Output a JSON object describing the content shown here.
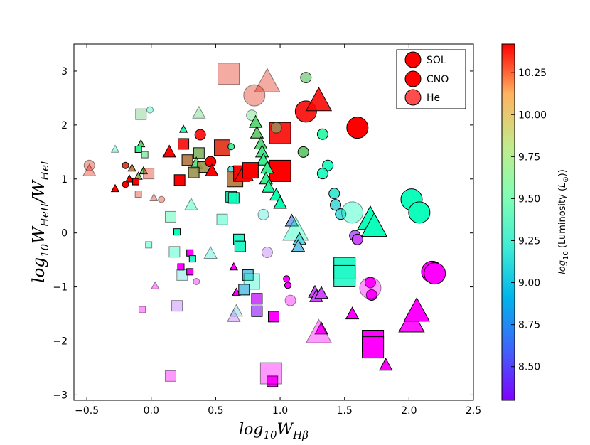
{
  "chart_data": {
    "type": "scatter",
    "xlabel": "log10WHβ",
    "ylabel": "log10WHeII/WHeI",
    "xlim": [
      -0.6,
      2.5
    ],
    "ylim": [
      -3.1,
      3.5
    ],
    "xticks": [
      -0.5,
      0.0,
      0.5,
      1.0,
      1.5,
      2.0,
      2.5
    ],
    "xtick_labels": [
      "−0.5",
      "0.0",
      "0.5",
      "1.0",
      "1.5",
      "2.0",
      "2.5"
    ],
    "yticks": [
      -3,
      -2,
      -1,
      0,
      1,
      2,
      3
    ],
    "ytick_labels": [
      "−3",
      "−2",
      "−1",
      "0",
      "1",
      "2",
      "3"
    ],
    "colorbar": {
      "label": "log10 (Luminosity (L☉))",
      "label_prefix": "log",
      "label_sub": "10",
      "label_mid": " (Luminosity (",
      "label_L": "L",
      "label_sun": "⊙",
      "label_end": "))",
      "vmin": 8.3,
      "vmax": 10.42,
      "ticks": [
        8.5,
        8.75,
        9.0,
        9.25,
        9.5,
        9.75,
        10.0,
        10.25
      ],
      "tick_labels": [
        "8.50",
        "8.75",
        "9.00",
        "9.25",
        "9.50",
        "9.75",
        "10.00",
        "10.25"
      ]
    },
    "legend": {
      "position": "upper-right",
      "entries": [
        {
          "label": "SOL",
          "marker": "circle",
          "alpha": 1.0
        },
        {
          "label": "CNO",
          "marker": "circle",
          "alpha": 1.0
        },
        {
          "label": "He",
          "marker": "circle",
          "alpha": 0.7
        }
      ]
    },
    "points": [
      {
        "x": 0.6,
        "y": 2.95,
        "m": "s",
        "s": 3,
        "c": 10.3,
        "a": 0.4
      },
      {
        "x": 0.9,
        "y": 2.8,
        "m": "t",
        "s": 3,
        "c": 10.3,
        "a": 0.4
      },
      {
        "x": 0.8,
        "y": 2.55,
        "m": "o",
        "s": 3,
        "c": 10.3,
        "a": 0.4
      },
      {
        "x": 1.2,
        "y": 2.88,
        "m": "o",
        "s": 1,
        "c": 9.8,
        "a": 0.7
      },
      {
        "x": 1.2,
        "y": 2.25,
        "m": "o",
        "s": 3,
        "c": 10.4,
        "a": 0.9
      },
      {
        "x": 1.3,
        "y": 2.45,
        "m": "t",
        "s": 3,
        "c": 10.4,
        "a": 0.9
      },
      {
        "x": 1.6,
        "y": 1.95,
        "m": "o",
        "s": 3,
        "c": 10.42,
        "a": 1.0
      },
      {
        "x": 1.0,
        "y": 1.85,
        "m": "s",
        "s": 3,
        "c": 10.4,
        "a": 0.9
      },
      {
        "x": 0.97,
        "y": 1.95,
        "m": "o",
        "s": 1,
        "c": 9.75,
        "a": 0.5
      },
      {
        "x": 1.33,
        "y": 1.83,
        "m": "o",
        "s": 1,
        "c": 9.5,
        "a": 0.9
      },
      {
        "x": 1.18,
        "y": 1.5,
        "m": "o",
        "s": 1,
        "c": 9.8,
        "a": 1.0
      },
      {
        "x": 1.37,
        "y": 1.25,
        "m": "o",
        "s": 1,
        "c": 9.3,
        "a": 0.9
      },
      {
        "x": 1.33,
        "y": 1.1,
        "m": "o",
        "s": 1,
        "c": 9.3,
        "a": 0.9
      },
      {
        "x": 1.0,
        "y": 1.15,
        "m": "s",
        "s": 3,
        "c": 10.42,
        "a": 1.0
      },
      {
        "x": -0.08,
        "y": 2.2,
        "m": "s",
        "s": 1,
        "c": 9.8,
        "a": 0.4
      },
      {
        "x": -0.01,
        "y": 2.28,
        "m": "o",
        "s": 0,
        "c": 9.3,
        "a": 0.4
      },
      {
        "x": 0.37,
        "y": 2.22,
        "m": "t",
        "s": 1,
        "c": 9.75,
        "a": 0.4
      },
      {
        "x": 0.78,
        "y": 2.18,
        "m": "o",
        "s": 1,
        "c": 9.75,
        "a": 0.4
      },
      {
        "x": 0.81,
        "y": 2.05,
        "m": "t",
        "s": 1,
        "c": 9.75,
        "a": 1.0
      },
      {
        "x": 0.82,
        "y": 1.85,
        "m": "t",
        "s": 1,
        "c": 9.8,
        "a": 1.0
      },
      {
        "x": 0.85,
        "y": 1.65,
        "m": "t",
        "s": 1,
        "c": 9.75,
        "a": 1.0
      },
      {
        "x": 0.86,
        "y": 1.5,
        "m": "t",
        "s": 1,
        "c": 9.65,
        "a": 1.0
      },
      {
        "x": 0.87,
        "y": 1.35,
        "m": "t",
        "s": 1,
        "c": 9.6,
        "a": 1.0
      },
      {
        "x": 0.9,
        "y": 1.2,
        "m": "t",
        "s": 1,
        "c": 9.6,
        "a": 1.0
      },
      {
        "x": 0.89,
        "y": 1.0,
        "m": "t",
        "s": 1,
        "c": 9.6,
        "a": 1.0
      },
      {
        "x": 0.91,
        "y": 0.85,
        "m": "t",
        "s": 1,
        "c": 9.5,
        "a": 1.0
      },
      {
        "x": 0.97,
        "y": 0.7,
        "m": "t",
        "s": 1,
        "c": 9.4,
        "a": 1.0
      },
      {
        "x": 1.0,
        "y": 0.55,
        "m": "t",
        "s": 1,
        "c": 9.35,
        "a": 1.0
      },
      {
        "x": 0.87,
        "y": 0.34,
        "m": "o",
        "s": 1,
        "c": 9.1,
        "a": 0.4
      },
      {
        "x": 0.38,
        "y": 1.82,
        "m": "o",
        "s": 1,
        "c": 10.4,
        "a": 0.9
      },
      {
        "x": 0.25,
        "y": 1.65,
        "m": "s",
        "s": 1,
        "c": 10.4,
        "a": 0.9
      },
      {
        "x": 0.55,
        "y": 1.58,
        "m": "s",
        "s": 2,
        "c": 10.3,
        "a": 0.9
      },
      {
        "x": 0.37,
        "y": 1.48,
        "m": "s",
        "s": 1,
        "c": 9.9,
        "a": 0.9
      },
      {
        "x": 0.25,
        "y": 1.92,
        "m": "t",
        "s": 0,
        "c": 9.4,
        "a": 1.0
      },
      {
        "x": 0.28,
        "y": 1.35,
        "m": "s",
        "s": 1,
        "c": 10.1,
        "a": 0.9
      },
      {
        "x": 0.35,
        "y": 1.28,
        "m": "t",
        "s": 1,
        "c": 9.7,
        "a": 0.9
      },
      {
        "x": 0.4,
        "y": 1.22,
        "m": "s",
        "s": 1,
        "c": 10.0,
        "a": 0.9
      },
      {
        "x": 0.33,
        "y": 1.12,
        "m": "s",
        "s": 1,
        "c": 10.0,
        "a": 0.9
      },
      {
        "x": 0.14,
        "y": 1.5,
        "m": "t",
        "s": 1,
        "c": 10.42,
        "a": 1.0
      },
      {
        "x": 0.46,
        "y": 1.32,
        "m": "o",
        "s": 1,
        "c": 10.42,
        "a": 1.0
      },
      {
        "x": 0.47,
        "y": 1.15,
        "m": "t",
        "s": 1,
        "c": 10.42,
        "a": 1.0
      },
      {
        "x": 0.22,
        "y": 0.98,
        "m": "s",
        "s": 1,
        "c": 10.42,
        "a": 1.0
      },
      {
        "x": 0.62,
        "y": 1.6,
        "m": "o",
        "s": 0,
        "c": 9.6,
        "a": 0.9
      },
      {
        "x": 0.62,
        "y": 1.18,
        "m": "o",
        "s": 0,
        "c": 9.0,
        "a": 0.9
      },
      {
        "x": 0.65,
        "y": 1.0,
        "m": "s",
        "s": 2,
        "c": 10.1,
        "a": 0.9
      },
      {
        "x": 0.7,
        "y": 1.1,
        "m": "s",
        "s": 2,
        "c": 10.4,
        "a": 1.0
      },
      {
        "x": 0.72,
        "y": 1.1,
        "m": "t",
        "s": 2,
        "c": 10.4,
        "a": 1.0
      },
      {
        "x": 0.77,
        "y": 1.16,
        "m": "s",
        "s": 2,
        "c": 10.42,
        "a": 1.0
      },
      {
        "x": 0.62,
        "y": 0.67,
        "m": "s",
        "s": 1,
        "c": 9.4,
        "a": 0.9
      },
      {
        "x": 0.64,
        "y": 0.65,
        "m": "s",
        "s": 1,
        "c": 9.3,
        "a": 0.9
      },
      {
        "x": 0.55,
        "y": 0.25,
        "m": "s",
        "s": 1,
        "c": 9.35,
        "a": 0.4
      },
      {
        "x": -0.08,
        "y": 1.65,
        "m": "t",
        "s": 0,
        "c": 9.8,
        "a": 1.0
      },
      {
        "x": -0.1,
        "y": 1.55,
        "m": "s",
        "s": 0,
        "c": 9.6,
        "a": 1.0
      },
      {
        "x": -0.05,
        "y": 1.45,
        "m": "s",
        "s": 0,
        "c": 9.7,
        "a": 0.6
      },
      {
        "x": -0.2,
        "y": 1.25,
        "m": "o",
        "s": 0,
        "c": 10.3,
        "a": 0.9
      },
      {
        "x": -0.15,
        "y": 1.2,
        "m": "t",
        "s": 0,
        "c": 10.1,
        "a": 0.9
      },
      {
        "x": -0.1,
        "y": 1.05,
        "m": "t",
        "s": 0,
        "c": 9.9,
        "a": 0.9
      },
      {
        "x": -0.06,
        "y": 1.15,
        "m": "t",
        "s": 0,
        "c": 9.8,
        "a": 1.0
      },
      {
        "x": -0.02,
        "y": 1.1,
        "m": "s",
        "s": 1,
        "c": 10.3,
        "a": 0.4
      },
      {
        "x": -0.17,
        "y": 1.0,
        "m": "t",
        "s": 0,
        "c": 10.42,
        "a": 1.0
      },
      {
        "x": -0.12,
        "y": 0.95,
        "m": "s",
        "s": 0,
        "c": 10.42,
        "a": 1.0
      },
      {
        "x": -0.2,
        "y": 0.9,
        "m": "o",
        "s": 0,
        "c": 10.42,
        "a": 1.0
      },
      {
        "x": -0.28,
        "y": 0.82,
        "m": "t",
        "s": 0,
        "c": 10.42,
        "a": 1.0
      },
      {
        "x": -0.28,
        "y": 1.55,
        "m": "t",
        "s": 0,
        "c": 9.2,
        "a": 0.4
      },
      {
        "x": -0.48,
        "y": 1.25,
        "m": "o",
        "s": 1,
        "c": 10.3,
        "a": 0.4
      },
      {
        "x": -0.48,
        "y": 1.15,
        "m": "t",
        "s": 1,
        "c": 10.3,
        "a": 0.4
      },
      {
        "x": -0.1,
        "y": 0.72,
        "m": "s",
        "s": 0,
        "c": 10.3,
        "a": 0.4
      },
      {
        "x": 0.02,
        "y": 0.65,
        "m": "t",
        "s": 0,
        "c": 10.3,
        "a": 0.4
      },
      {
        "x": 0.08,
        "y": 0.62,
        "m": "o",
        "s": 0,
        "c": 10.3,
        "a": 0.4
      },
      {
        "x": 0.15,
        "y": 0.3,
        "m": "s",
        "s": 1,
        "c": 9.5,
        "a": 0.4
      },
      {
        "x": 0.31,
        "y": 0.52,
        "m": "t",
        "s": 1,
        "c": 9.3,
        "a": 0.4
      },
      {
        "x": -0.02,
        "y": -0.22,
        "m": "s",
        "s": 0,
        "c": 9.3,
        "a": 0.4
      },
      {
        "x": 0.2,
        "y": 0.02,
        "m": "s",
        "s": 0,
        "c": 9.3,
        "a": 1.0
      },
      {
        "x": 0.18,
        "y": -0.35,
        "m": "s",
        "s": 1,
        "c": 9.3,
        "a": 0.4
      },
      {
        "x": 0.68,
        "y": -0.12,
        "m": "s",
        "s": 1,
        "c": 9.2,
        "a": 1.0
      },
      {
        "x": 0.69,
        "y": -0.25,
        "m": "s",
        "s": 1,
        "c": 9.2,
        "a": 1.0
      },
      {
        "x": 0.46,
        "y": -0.38,
        "m": "t",
        "s": 1,
        "c": 9.1,
        "a": 0.4
      },
      {
        "x": 0.9,
        "y": -0.36,
        "m": "o",
        "s": 1,
        "c": 8.6,
        "a": 0.4
      },
      {
        "x": 0.23,
        "y": -0.63,
        "m": "s",
        "s": 0,
        "c": 8.3,
        "a": 1.0
      },
      {
        "x": 0.3,
        "y": -0.37,
        "m": "s",
        "s": 0,
        "c": 8.3,
        "a": 1.0
      },
      {
        "x": 0.32,
        "y": -0.48,
        "m": "s",
        "s": 0,
        "c": 9.2,
        "a": 1.0
      },
      {
        "x": 0.24,
        "y": -0.78,
        "m": "s",
        "s": 1,
        "c": 9.0,
        "a": 0.4
      },
      {
        "x": 0.3,
        "y": -0.72,
        "m": "s",
        "s": 0,
        "c": 8.3,
        "a": 1.0
      },
      {
        "x": 0.35,
        "y": -0.9,
        "m": "o",
        "s": 0,
        "c": 8.3,
        "a": 0.4
      },
      {
        "x": 0.03,
        "y": -0.98,
        "m": "t",
        "s": 0,
        "c": 8.3,
        "a": 0.4
      },
      {
        "x": -0.07,
        "y": -1.42,
        "m": "s",
        "s": 0,
        "c": 8.3,
        "a": 0.4
      },
      {
        "x": 0.2,
        "y": -1.35,
        "m": "s",
        "s": 1,
        "c": 8.6,
        "a": 0.4
      },
      {
        "x": 0.64,
        "y": -0.63,
        "m": "t",
        "s": 0,
        "c": 8.3,
        "a": 1.0
      },
      {
        "x": 0.66,
        "y": -1.1,
        "m": "t",
        "s": 0,
        "c": 8.3,
        "a": 1.0
      },
      {
        "x": 0.64,
        "y": -1.55,
        "m": "t",
        "s": 1,
        "c": 8.6,
        "a": 0.4
      },
      {
        "x": 0.66,
        "y": -1.45,
        "m": "t",
        "s": 1,
        "c": 8.9,
        "a": 0.4
      },
      {
        "x": 0.75,
        "y": -0.78,
        "m": "s",
        "s": 1,
        "c": 8.9,
        "a": 1.0
      },
      {
        "x": 0.78,
        "y": -0.9,
        "m": "s",
        "s": 2,
        "c": 9.2,
        "a": 0.4
      },
      {
        "x": 0.72,
        "y": -1.05,
        "m": "s",
        "s": 1,
        "c": 8.9,
        "a": 1.0
      },
      {
        "x": 0.82,
        "y": -1.22,
        "m": "s",
        "s": 1,
        "c": 8.5,
        "a": 1.0
      },
      {
        "x": 0.82,
        "y": -1.45,
        "m": "s",
        "s": 1,
        "c": 8.6,
        "a": 1.0
      },
      {
        "x": 0.95,
        "y": -1.55,
        "m": "s",
        "s": 1,
        "c": 8.3,
        "a": 1.0
      },
      {
        "x": 1.05,
        "y": -0.85,
        "m": "o",
        "s": 0,
        "c": 8.3,
        "a": 1.0
      },
      {
        "x": 1.06,
        "y": -0.97,
        "m": "o",
        "s": 0,
        "c": 8.3,
        "a": 1.0
      },
      {
        "x": 1.08,
        "y": -1.25,
        "m": "o",
        "s": 1,
        "c": 8.3,
        "a": 0.4
      },
      {
        "x": 0.94,
        "y": -2.75,
        "m": "s",
        "s": 1,
        "c": 8.3,
        "a": 1.0
      },
      {
        "x": 0.93,
        "y": -2.6,
        "m": "s",
        "s": 3,
        "c": 8.3,
        "a": 0.4
      },
      {
        "x": 0.15,
        "y": -2.65,
        "m": "s",
        "s": 1,
        "c": 8.3,
        "a": 0.4
      },
      {
        "x": 1.09,
        "y": 0.22,
        "m": "t",
        "s": 1,
        "c": 8.8,
        "a": 1.0
      },
      {
        "x": 1.12,
        "y": 0.05,
        "m": "t",
        "s": 3,
        "c": 9.3,
        "a": 0.4
      },
      {
        "x": 1.15,
        "y": -0.12,
        "m": "t",
        "s": 1,
        "c": 9.0,
        "a": 1.0
      },
      {
        "x": 1.14,
        "y": -0.25,
        "m": "t",
        "s": 1,
        "c": 8.9,
        "a": 1.0
      },
      {
        "x": 1.42,
        "y": 0.73,
        "m": "o",
        "s": 1,
        "c": 9.1,
        "a": 1.0
      },
      {
        "x": 1.43,
        "y": 0.52,
        "m": "o",
        "s": 1,
        "c": 9.0,
        "a": 1.0
      },
      {
        "x": 1.47,
        "y": 0.35,
        "m": "o",
        "s": 1,
        "c": 9.0,
        "a": 1.0
      },
      {
        "x": 1.56,
        "y": 0.38,
        "m": "o",
        "s": 3,
        "c": 9.3,
        "a": 0.4
      },
      {
        "x": 1.58,
        "y": -0.05,
        "m": "o",
        "s": 1,
        "c": 8.6,
        "a": 1.0
      },
      {
        "x": 1.6,
        "y": -0.12,
        "m": "o",
        "s": 1,
        "c": 8.5,
        "a": 1.0
      },
      {
        "x": 1.7,
        "y": 0.25,
        "m": "t",
        "s": 3,
        "c": 9.3,
        "a": 1.0
      },
      {
        "x": 1.73,
        "y": 0.12,
        "m": "t",
        "s": 3,
        "c": 9.3,
        "a": 1.0
      },
      {
        "x": 2.02,
        "y": 0.62,
        "m": "o",
        "s": 3,
        "c": 9.3,
        "a": 1.0
      },
      {
        "x": 2.08,
        "y": 0.38,
        "m": "o",
        "s": 3,
        "c": 9.3,
        "a": 1.0
      },
      {
        "x": 1.5,
        "y": -0.65,
        "m": "s",
        "s": 3,
        "c": 9.2,
        "a": 1.0
      },
      {
        "x": 1.5,
        "y": -0.8,
        "m": "s",
        "s": 3,
        "c": 9.2,
        "a": 0.9
      },
      {
        "x": 1.7,
        "y": -0.92,
        "m": "o",
        "s": 1,
        "c": 8.3,
        "a": 1.0
      },
      {
        "x": 1.71,
        "y": -1.15,
        "m": "o",
        "s": 1,
        "c": 8.3,
        "a": 1.0
      },
      {
        "x": 1.7,
        "y": -1.02,
        "m": "o",
        "s": 3,
        "c": 8.3,
        "a": 0.4
      },
      {
        "x": 2.18,
        "y": -0.72,
        "m": "o",
        "s": 3,
        "c": 8.3,
        "a": 1.0
      },
      {
        "x": 2.2,
        "y": -0.75,
        "m": "o",
        "s": 3,
        "c": 8.3,
        "a": 1.0
      },
      {
        "x": 1.27,
        "y": -1.1,
        "m": "t",
        "s": 1,
        "c": 8.5,
        "a": 1.0
      },
      {
        "x": 1.28,
        "y": -1.18,
        "m": "t",
        "s": 1,
        "c": 8.5,
        "a": 1.0
      },
      {
        "x": 1.32,
        "y": -1.12,
        "m": "t",
        "s": 1,
        "c": 8.5,
        "a": 1.0
      },
      {
        "x": 1.32,
        "y": -1.78,
        "m": "t",
        "s": 1,
        "c": 8.3,
        "a": 1.0
      },
      {
        "x": 1.3,
        "y": -1.85,
        "m": "t",
        "s": 3,
        "c": 8.3,
        "a": 0.4
      },
      {
        "x": 1.56,
        "y": -1.5,
        "m": "t",
        "s": 1,
        "c": 8.3,
        "a": 1.0
      },
      {
        "x": 1.72,
        "y": -2.0,
        "m": "s",
        "s": 3,
        "c": 8.3,
        "a": 1.0
      },
      {
        "x": 1.72,
        "y": -2.12,
        "m": "s",
        "s": 3,
        "c": 8.3,
        "a": 1.0
      },
      {
        "x": 1.82,
        "y": -2.45,
        "m": "t",
        "s": 1,
        "c": 8.3,
        "a": 1.0
      },
      {
        "x": 2.02,
        "y": -1.65,
        "m": "t",
        "s": 3,
        "c": 8.3,
        "a": 0.9
      },
      {
        "x": 2.06,
        "y": -1.45,
        "m": "t",
        "s": 3,
        "c": 8.3,
        "a": 1.0
      }
    ]
  }
}
